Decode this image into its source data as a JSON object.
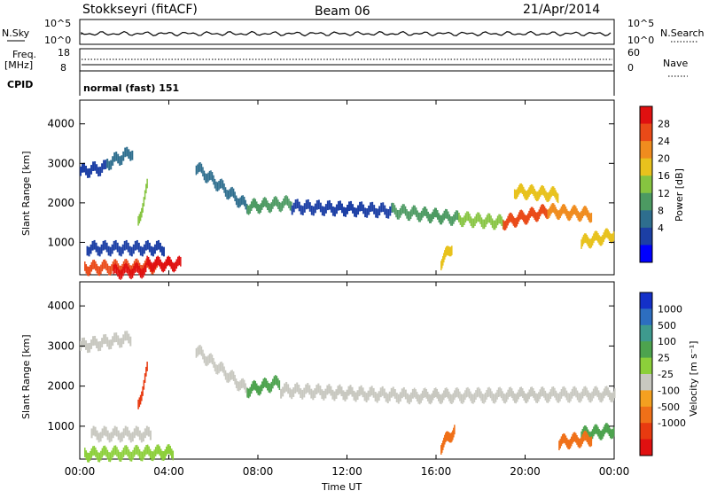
{
  "header": {
    "title": "Stokkseyri (fitACF)",
    "beam": "Beam 06",
    "date": "21/Apr/2014"
  },
  "chart_data": [
    {
      "type": "line",
      "name": "nsky-nsearch",
      "left_label": "N.Sky",
      "right_label": "N.Search",
      "left_ticks": [
        "10^5",
        "10^0"
      ],
      "right_ticks": [
        "10^5",
        "10^0"
      ]
    },
    {
      "type": "line",
      "name": "freq-nave",
      "left_label_top": "Freq.",
      "left_label_unit": "[MHz]",
      "right_label": "Nave",
      "left_ticks": [
        18,
        8
      ],
      "right_ticks": [
        60,
        0
      ],
      "cpid_label": "CPID",
      "cpid_text": "normal (fast) 151"
    },
    {
      "type": "heatmap",
      "name": "power",
      "ylabel": "Slant Range [km]",
      "yticks": [
        1000,
        2000,
        3000,
        4000
      ],
      "ylim": [
        180,
        4600
      ],
      "colorbar_label": "Power [dB]",
      "colorbar_ticks": [
        4,
        8,
        12,
        16,
        20,
        24,
        28
      ],
      "colors": [
        "#0000ff",
        "#1c3fa5",
        "#2e6e8e",
        "#4c9a62",
        "#86c440",
        "#e8c21d",
        "#f08c1e",
        "#ea4a18",
        "#e01010"
      ]
    },
    {
      "type": "heatmap",
      "name": "velocity",
      "ylabel": "Slant Range [km]",
      "yticks": [
        1000,
        2000,
        3000,
        4000
      ],
      "ylim": [
        180,
        4600
      ],
      "colorbar_label": "Velocity [m s⁻¹]",
      "colorbar_ticks": [
        1000,
        500,
        100,
        25,
        -25,
        -100,
        -500,
        -1000
      ],
      "colors": [
        "#1430c8",
        "#2d6ec0",
        "#3e9a8e",
        "#4da34e",
        "#8ccf3a",
        "#c8c8c0",
        "#f4a020",
        "#f07018",
        "#e83a10",
        "#e01010"
      ]
    }
  ],
  "xaxis": {
    "xlabel": "Time UT",
    "ticks": [
      "00:00",
      "04:00",
      "08:00",
      "12:00",
      "16:00",
      "20:00",
      "00:00"
    ]
  }
}
